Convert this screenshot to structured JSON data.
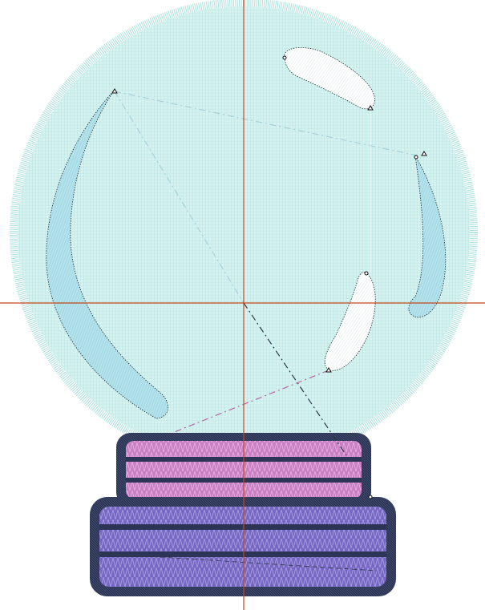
{
  "canvas": {
    "background": "#ffffff",
    "design_name": "snow-globe-embroidery"
  },
  "palette": {
    "globe_fill": "#d7f1ee",
    "globe_stitch": "#a9e0dc",
    "reflection_blue": "#a6dbe6",
    "reflection_white": "#ffffff",
    "base_top_pink": "#c97fc4",
    "base_top_pink_light": "#e2a6d8",
    "base_bottom_purple": "#7767c2",
    "base_bottom_purple_light": "#9c93db",
    "satin_border": "#2c3555",
    "crosshair": "#c5471c",
    "jump_stitch_dark": "#2f3a48",
    "jump_stitch_light": "#a8cfd8",
    "jump_stitch_pink": "#b5679f"
  },
  "icons": {
    "stitch_start": "circle-marker-icon",
    "stitch_end": "triangle-marker-icon"
  }
}
